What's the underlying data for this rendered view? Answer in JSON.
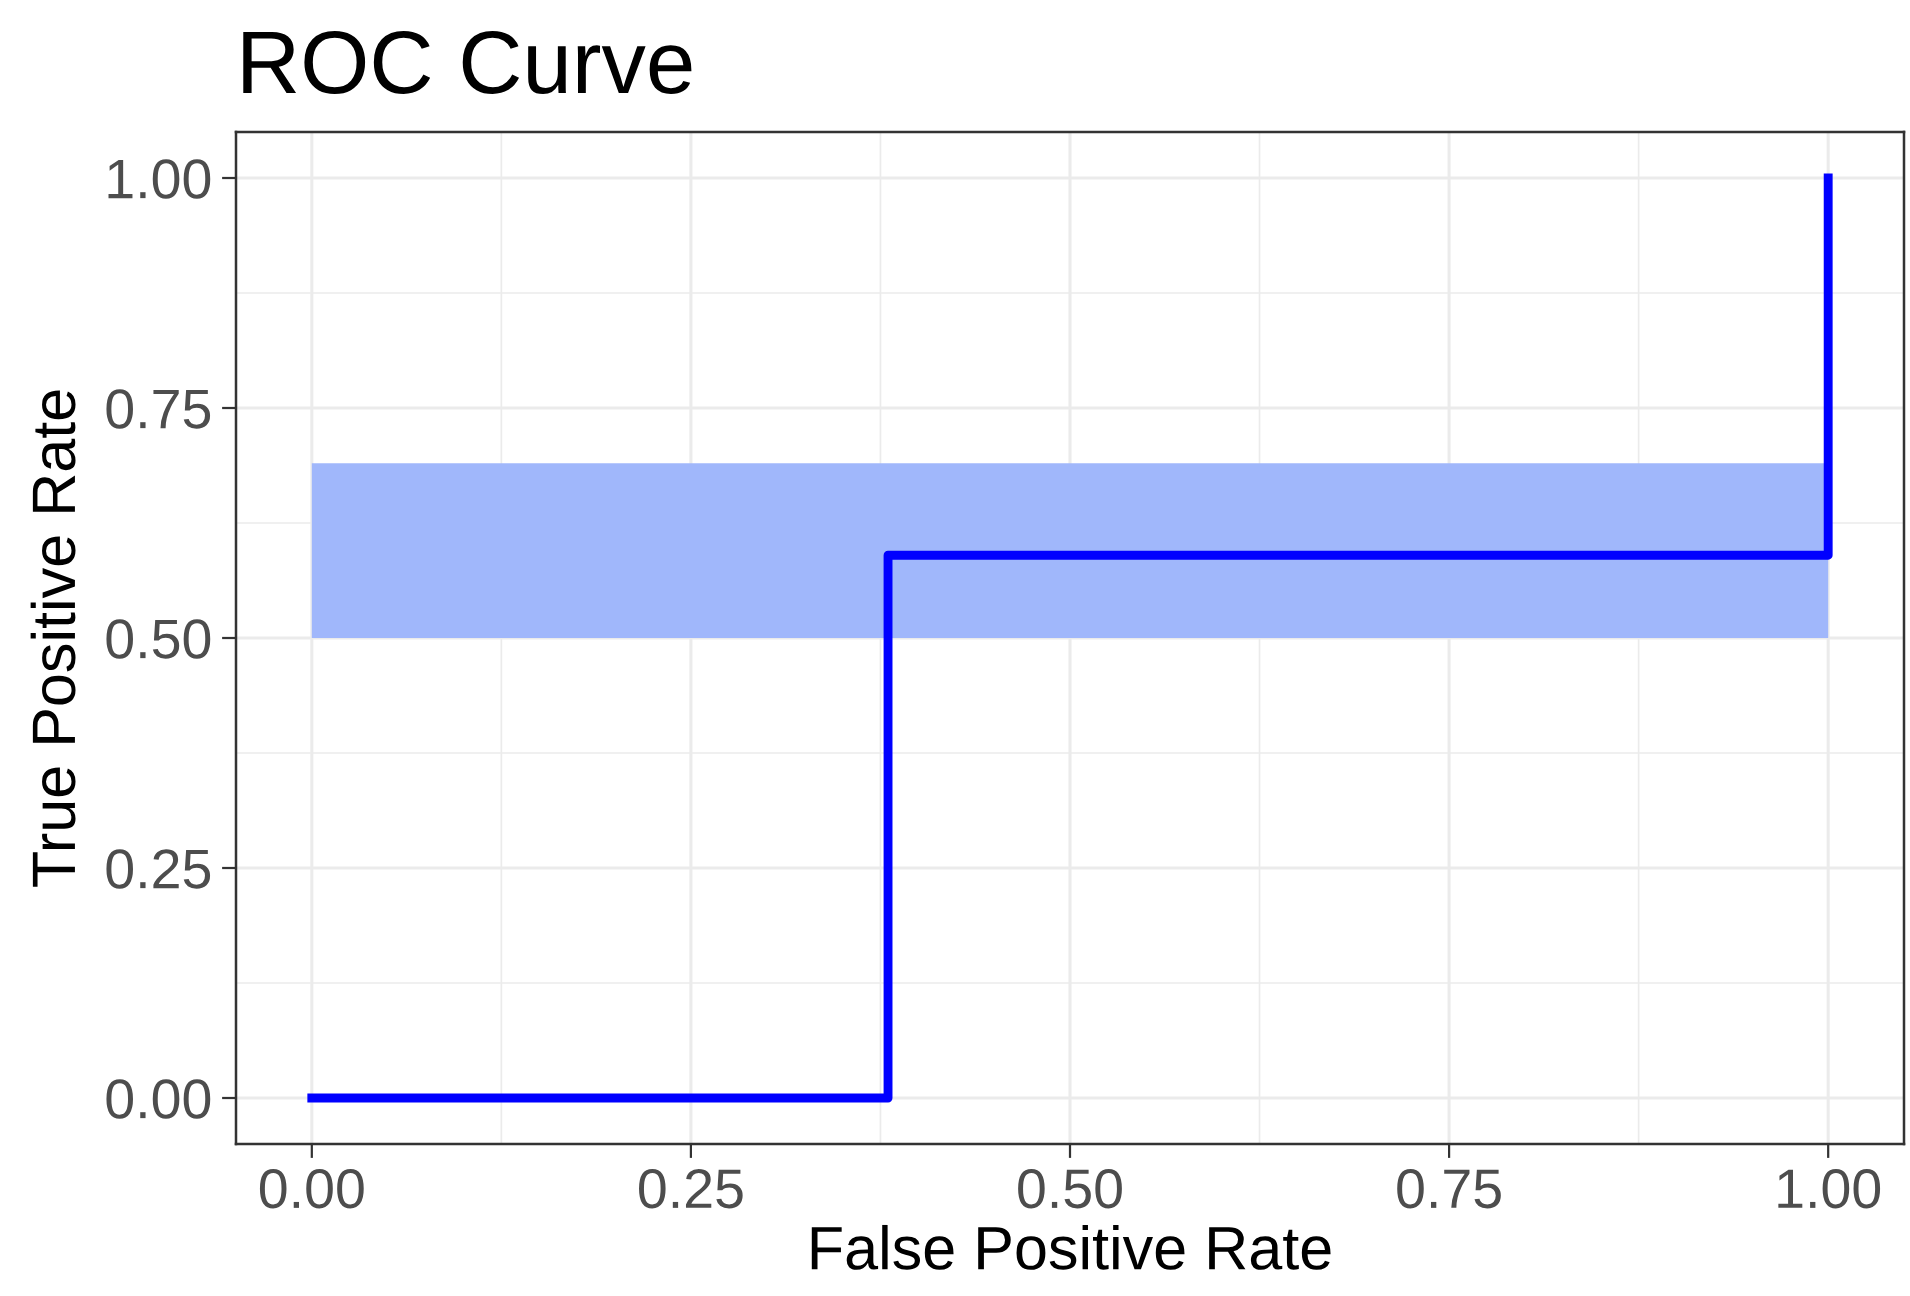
{
  "chart_data": {
    "type": "step",
    "title": "ROC Curve",
    "xlabel": "False Positive Rate",
    "ylabel": "True Positive Rate",
    "series": [
      {
        "x": [
          0,
          0.38,
          1
        ],
        "values": [
          0,
          0.59,
          1
        ],
        "color": "#0000ff"
      }
    ],
    "bands": [
      {
        "axis": "y",
        "from": 0.5,
        "to": 0.69,
        "color": "#a0b7fb"
      }
    ],
    "xlim": [
      -0.05,
      1.05
    ],
    "ylim": [
      -0.05,
      1.05
    ],
    "xticks": [
      {
        "value": 0,
        "label": "0.00"
      },
      {
        "value": 0.25,
        "label": "0.25"
      },
      {
        "value": 0.5,
        "label": "0.50"
      },
      {
        "value": 0.75,
        "label": "0.75"
      },
      {
        "value": 1,
        "label": "1.00"
      }
    ],
    "yticks": [
      {
        "value": 0,
        "label": "0.00"
      },
      {
        "value": 0.25,
        "label": "0.25"
      },
      {
        "value": 0.5,
        "label": "0.50"
      },
      {
        "value": 0.75,
        "label": "0.75"
      },
      {
        "value": 1,
        "label": "1.00"
      }
    ],
    "grid": true
  }
}
